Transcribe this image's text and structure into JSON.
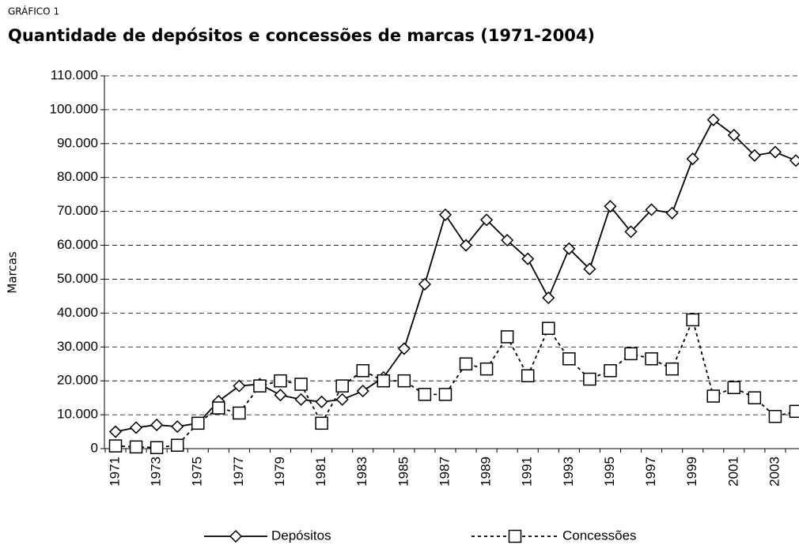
{
  "chart_data": {
    "type": "line",
    "kicker": "GRÁFICO 1",
    "title": "Quantidade de depósitos e concessões de marcas (1971-2004)",
    "y_label": "Marcas",
    "categories": [
      "1971",
      null,
      "1973",
      null,
      "1975",
      null,
      "1977",
      null,
      "1979",
      null,
      "1981",
      null,
      "1983",
      null,
      "1985",
      null,
      "1987",
      null,
      "1989",
      null,
      "1991",
      null,
      "1993",
      null,
      "1995",
      null,
      "1997",
      null,
      "1999",
      null,
      "2001",
      null,
      "2003",
      null
    ],
    "series": [
      {
        "name": "Depósitos",
        "color": "#000000",
        "dash": "solid",
        "marker": "diamond",
        "values": [
          5000,
          6200,
          7000,
          6500,
          7500,
          14000,
          18500,
          19000,
          15800,
          14500,
          13800,
          14500,
          17000,
          21000,
          29500,
          48500,
          69000,
          60000,
          67500,
          61500,
          56000,
          44500,
          59000,
          53000,
          71500,
          64000,
          70500,
          69500,
          85500,
          97000,
          92500,
          86500,
          87500,
          85000
        ]
      },
      {
        "name": "Concessões",
        "color": "#000000",
        "dash": "dashed",
        "marker": "square",
        "values": [
          800,
          500,
          300,
          1000,
          7500,
          12000,
          10500,
          18500,
          20000,
          19000,
          7500,
          18500,
          23000,
          20000,
          20000,
          16000,
          16000,
          25000,
          23500,
          33000,
          21500,
          35500,
          26500,
          20500,
          23000,
          28000,
          26500,
          23500,
          38000,
          15500,
          18000,
          15000,
          9500,
          11000
        ]
      }
    ],
    "ylim": [
      0,
      110000
    ],
    "yticks": [
      0,
      {
        "value": 10000,
        "label": "10.000"
      },
      {
        "value": 20000,
        "label": "20.000"
      },
      {
        "value": 30000,
        "label": "30.000"
      },
      {
        "value": 40000,
        "label": "40.000"
      },
      {
        "value": 50000,
        "label": "50.000"
      },
      {
        "value": 60000,
        "label": "60.000"
      },
      {
        "value": 70000,
        "label": "70.000"
      },
      {
        "value": 80000,
        "label": "80.000"
      },
      {
        "value": 90000,
        "label": "90.000"
      },
      {
        "value": 100000,
        "label": "100.000"
      },
      {
        "value": 110000,
        "label": "110.000"
      }
    ],
    "grid": true,
    "legend": "bottom"
  }
}
